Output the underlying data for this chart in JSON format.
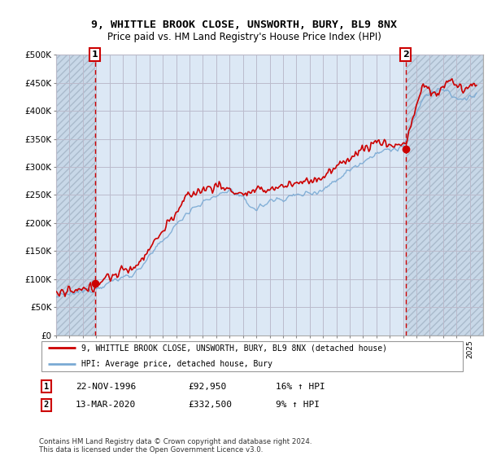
{
  "title1": "9, WHITTLE BROOK CLOSE, UNSWORTH, BURY, BL9 8NX",
  "title2": "Price paid vs. HM Land Registry's House Price Index (HPI)",
  "ylabel_ticks": [
    "£0",
    "£50K",
    "£100K",
    "£150K",
    "£200K",
    "£250K",
    "£300K",
    "£350K",
    "£400K",
    "£450K",
    "£500K"
  ],
  "ytick_values": [
    0,
    50000,
    100000,
    150000,
    200000,
    250000,
    300000,
    350000,
    400000,
    450000,
    500000
  ],
  "xlim_start": 1994,
  "xlim_end": 2026,
  "ylim_min": 0,
  "ylim_max": 500000,
  "legend_line1": "9, WHITTLE BROOK CLOSE, UNSWORTH, BURY, BL9 8NX (detached house)",
  "legend_line2": "HPI: Average price, detached house, Bury",
  "sale1_date": 1996.9,
  "sale1_price": 92950,
  "sale1_label": "1",
  "sale2_date": 2020.2,
  "sale2_price": 332500,
  "sale2_label": "2",
  "table_rows": [
    [
      "1",
      "22-NOV-1996",
      "£92,950",
      "16% ↑ HPI"
    ],
    [
      "2",
      "13-MAR-2020",
      "£332,500",
      "9% ↑ HPI"
    ]
  ],
  "footnote": "Contains HM Land Registry data © Crown copyright and database right 2024.\nThis data is licensed under the Open Government Licence v3.0.",
  "red_color": "#cc0000",
  "blue_color": "#7aaad4",
  "grid_color": "#bbbbcc",
  "bg_color": "#dce8f5",
  "hatch_color": "#c8d8e8"
}
